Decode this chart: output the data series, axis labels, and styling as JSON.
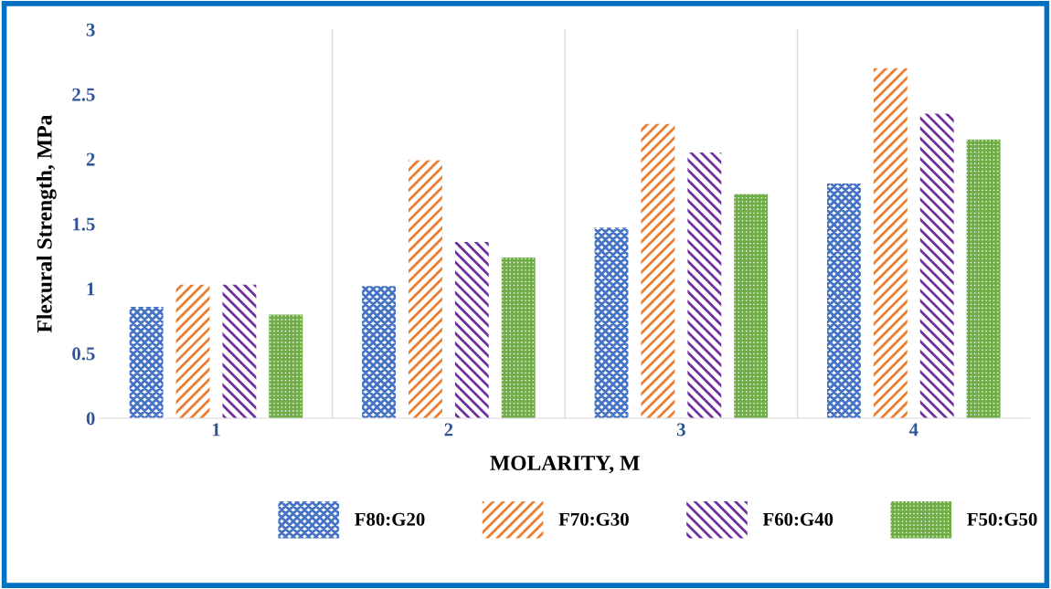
{
  "chart_data": {
    "type": "bar",
    "xlabel": "MOLARITY, M",
    "ylabel": "Flexural Strength, MPa",
    "categories": [
      "1",
      "2",
      "3",
      "4"
    ],
    "ylim": [
      0,
      3
    ],
    "yticks": [
      0,
      0.5,
      1,
      1.5,
      2,
      2.5,
      3
    ],
    "grid": false,
    "legend": "bottom",
    "series": [
      {
        "name": "F80:G20",
        "color": "#4472c4",
        "values": [
          0.86,
          1.02,
          1.47,
          1.81
        ]
      },
      {
        "name": "F70:G30",
        "color": "#ed7d31",
        "values": [
          1.03,
          1.99,
          2.27,
          2.7
        ]
      },
      {
        "name": "F60:G40",
        "color": "#7030a0",
        "values": [
          1.03,
          1.36,
          2.05,
          2.35
        ]
      },
      {
        "name": "F50:G50",
        "color": "#70ad47",
        "values": [
          0.8,
          1.24,
          1.73,
          2.15
        ]
      }
    ]
  }
}
